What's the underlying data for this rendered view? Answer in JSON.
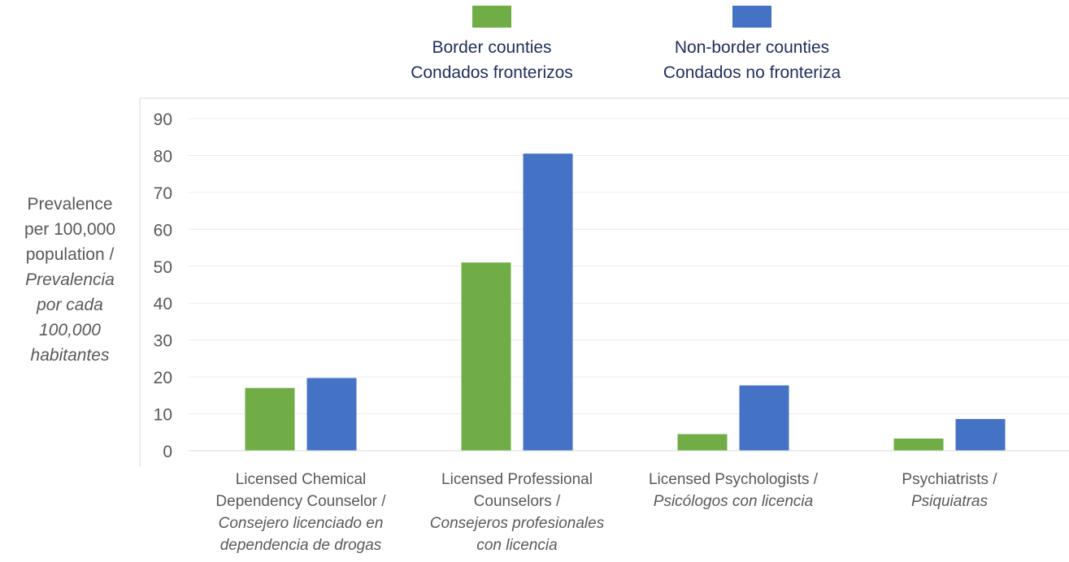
{
  "chart_data": {
    "type": "bar",
    "categories": [
      {
        "en_lines": [
          "Licensed Chemical",
          "Dependency Counselor /"
        ],
        "es_lines": [
          "Consejero licenciado en",
          "dependencia de drogas"
        ]
      },
      {
        "en_lines": [
          "Licensed Professional",
          "Counselors /"
        ],
        "es_lines": [
          "Consejeros profesionales",
          "con licencia"
        ]
      },
      {
        "en_lines": [
          "Licensed Psychologists /"
        ],
        "es_lines": [
          "Psicólogos con licencia"
        ]
      },
      {
        "en_lines": [
          "Psychiatrists /"
        ],
        "es_lines": [
          "Psiquiatras"
        ]
      }
    ],
    "series": [
      {
        "name_lines": [
          "Border counties",
          "Condados fronterizos"
        ],
        "color": "#70ad47",
        "values": [
          17,
          51,
          4.5,
          3.3
        ]
      },
      {
        "name_lines": [
          "Non-border counties",
          "Condados no fronteriza"
        ],
        "color": "#4472c4",
        "values": [
          19.7,
          80.5,
          17.7,
          8.6
        ]
      }
    ],
    "ylabel": {
      "en_lines": [
        "Prevalence",
        "per 100,000",
        "population /"
      ],
      "es_lines": [
        "Prevalencia",
        "por cada",
        "100,000",
        "habitantes"
      ]
    },
    "ylim": [
      0,
      90
    ],
    "yticks": [
      0,
      10,
      20,
      30,
      40,
      50,
      60,
      70,
      80,
      90
    ],
    "legend_position": "top",
    "grid": true
  }
}
